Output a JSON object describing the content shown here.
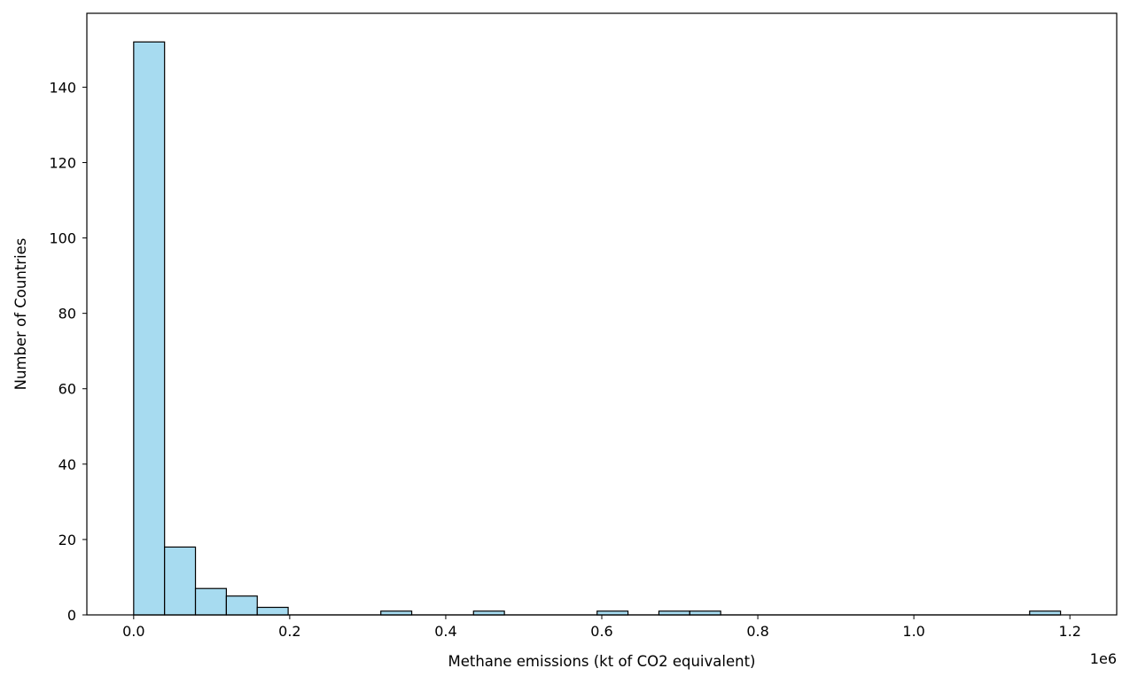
{
  "chart_data": {
    "type": "bar",
    "subtype": "histogram",
    "title": "",
    "xlabel": "Methane emissions (kt of CO2 equivalent)",
    "ylabel": "Number of Countries",
    "x_offset_text": "1e6",
    "xlim": [
      -0.06,
      1.26
    ],
    "ylim": [
      0,
      159.6
    ],
    "x_ticks": [
      0.0,
      0.2,
      0.4,
      0.6,
      0.8,
      1.0,
      1.2
    ],
    "x_tick_labels": [
      "0.0",
      "0.2",
      "0.4",
      "0.6",
      "0.8",
      "1.0",
      "1.2"
    ],
    "y_ticks": [
      0,
      20,
      40,
      60,
      80,
      100,
      120,
      140
    ],
    "y_tick_labels": [
      "0",
      "20",
      "40",
      "60",
      "80",
      "100",
      "120",
      "140"
    ],
    "bin_start": 0.0,
    "bin_width": 0.0396,
    "counts": [
      152,
      18,
      7,
      5,
      2,
      0,
      0,
      0,
      1,
      0,
      0,
      1,
      0,
      0,
      0,
      1,
      0,
      1,
      1,
      0,
      0,
      0,
      0,
      0,
      0,
      0,
      0,
      0,
      0,
      1
    ],
    "grid": false,
    "legend": false,
    "colors": {
      "bar_fill": "#a7dbf0",
      "bar_edge": "#000000"
    }
  }
}
